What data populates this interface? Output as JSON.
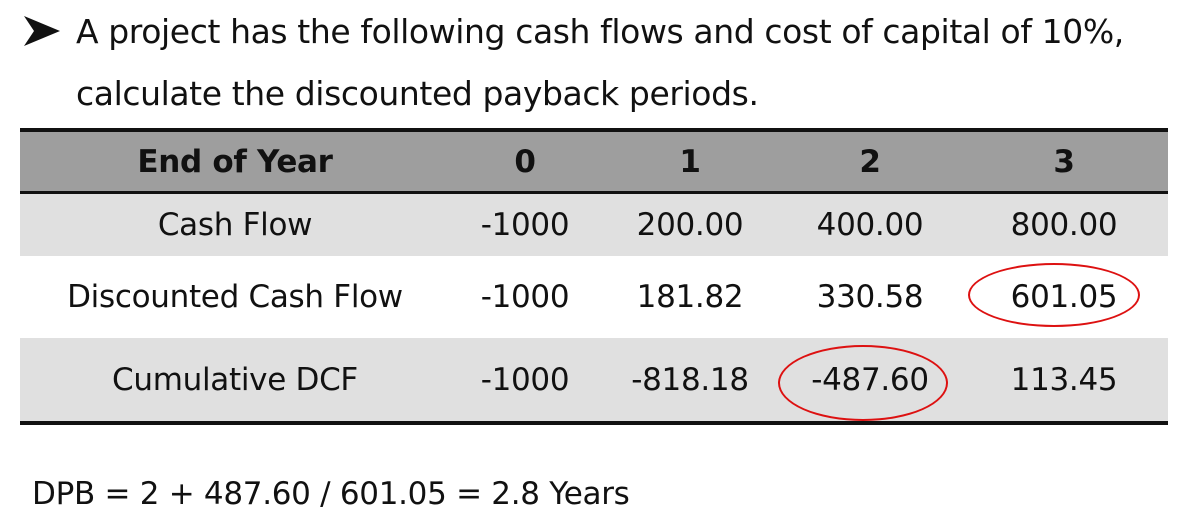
{
  "question": {
    "bullet_icon": "arrowhead-bullet",
    "line1": "A project has the following cash flows and cost of capital of 10%,",
    "line2": "calculate the discounted payback periods."
  },
  "table": {
    "header": [
      "End of Year",
      "0",
      "1",
      "2",
      "3"
    ],
    "rows": [
      {
        "label": "Cash Flow",
        "values": [
          "-1000",
          "200.00",
          "400.00",
          "800.00"
        ]
      },
      {
        "label": "Discounted Cash Flow",
        "values": [
          "-1000",
          "181.82",
          "330.58",
          "601.05"
        ]
      },
      {
        "label": "Cumulative DCF",
        "values": [
          "-1000",
          "-818.18",
          "-487.60",
          "113.45"
        ]
      }
    ],
    "header_color": "#9e9e9e",
    "band_color": "#e0e0e0",
    "highlight_color": "#dd1111"
  },
  "formula": "DPB = 2 + 487.60 / 601.05 = 2.8 Years"
}
